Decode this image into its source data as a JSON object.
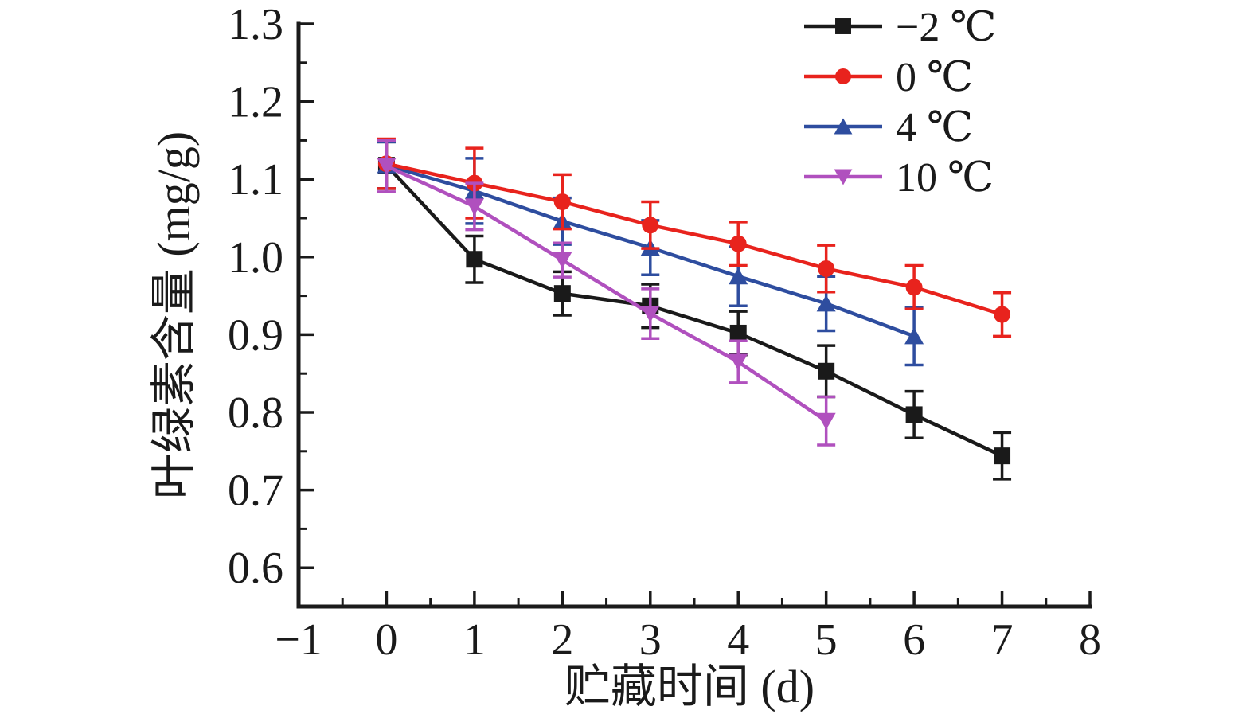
{
  "figure": {
    "background": "#ffffff",
    "ink_color": "#1a1a1a"
  },
  "chart_data": {
    "type": "line",
    "title": "",
    "xlabel": "贮藏时间 (d)",
    "ylabel": "叶绿素含量 (mg/g)",
    "xlim": [
      -1,
      8
    ],
    "ylim": [
      0.55,
      1.3
    ],
    "xticks": [
      -1,
      0,
      1,
      2,
      3,
      4,
      5,
      6,
      7,
      8
    ],
    "xtick_labels": [
      "−1",
      "0",
      "1",
      "2",
      "3",
      "4",
      "5",
      "6",
      "7",
      "8"
    ],
    "yticks": [
      0.6,
      0.7,
      0.8,
      0.9,
      1.0,
      1.1,
      1.2,
      1.3
    ],
    "ytick_labels": [
      "0.6",
      "0.7",
      "0.8",
      "0.9",
      "1.0",
      "1.1",
      "1.2",
      "1.3"
    ],
    "minor_x_step": 0.5,
    "minor_y_step": 0.05,
    "grid": false,
    "error_bars": true,
    "legend_position": "top-right",
    "series": [
      {
        "name": "−2 ℃",
        "color": "#1a1a1a",
        "marker": "square",
        "z": 1,
        "x": [
          0,
          1,
          2,
          3,
          4,
          5,
          6,
          7
        ],
        "values": [
          1.118,
          0.997,
          0.953,
          0.937,
          0.902,
          0.853,
          0.797,
          0.744
        ],
        "errors": [
          0.03,
          0.03,
          0.028,
          0.028,
          0.028,
          0.033,
          0.03,
          0.03
        ]
      },
      {
        "name": "0 ℃",
        "color": "#e8231d",
        "marker": "circle",
        "z": 3,
        "x": [
          0,
          1,
          2,
          3,
          4,
          5,
          6,
          7
        ],
        "values": [
          1.12,
          1.095,
          1.071,
          1.041,
          1.017,
          0.985,
          0.961,
          0.926
        ],
        "errors": [
          0.032,
          0.045,
          0.035,
          0.03,
          0.028,
          0.03,
          0.028,
          0.028
        ]
      },
      {
        "name": "4 ℃",
        "color": "#2e4d9f",
        "marker": "triangle-up",
        "z": 2,
        "x": [
          0,
          1,
          2,
          3,
          4,
          5,
          6
        ],
        "values": [
          1.118,
          1.085,
          1.046,
          1.012,
          0.975,
          0.94,
          0.898
        ],
        "errors": [
          0.03,
          0.042,
          0.03,
          0.035,
          0.038,
          0.035,
          0.037
        ]
      },
      {
        "name": "10 ℃",
        "color": "#b050be",
        "marker": "triangle-down",
        "z": 4,
        "x": [
          0,
          1,
          2,
          3,
          4,
          5
        ],
        "values": [
          1.117,
          1.065,
          0.996,
          0.927,
          0.865,
          0.789
        ],
        "errors": [
          0.033,
          0.03,
          0.022,
          0.032,
          0.027,
          0.031
        ]
      }
    ]
  }
}
